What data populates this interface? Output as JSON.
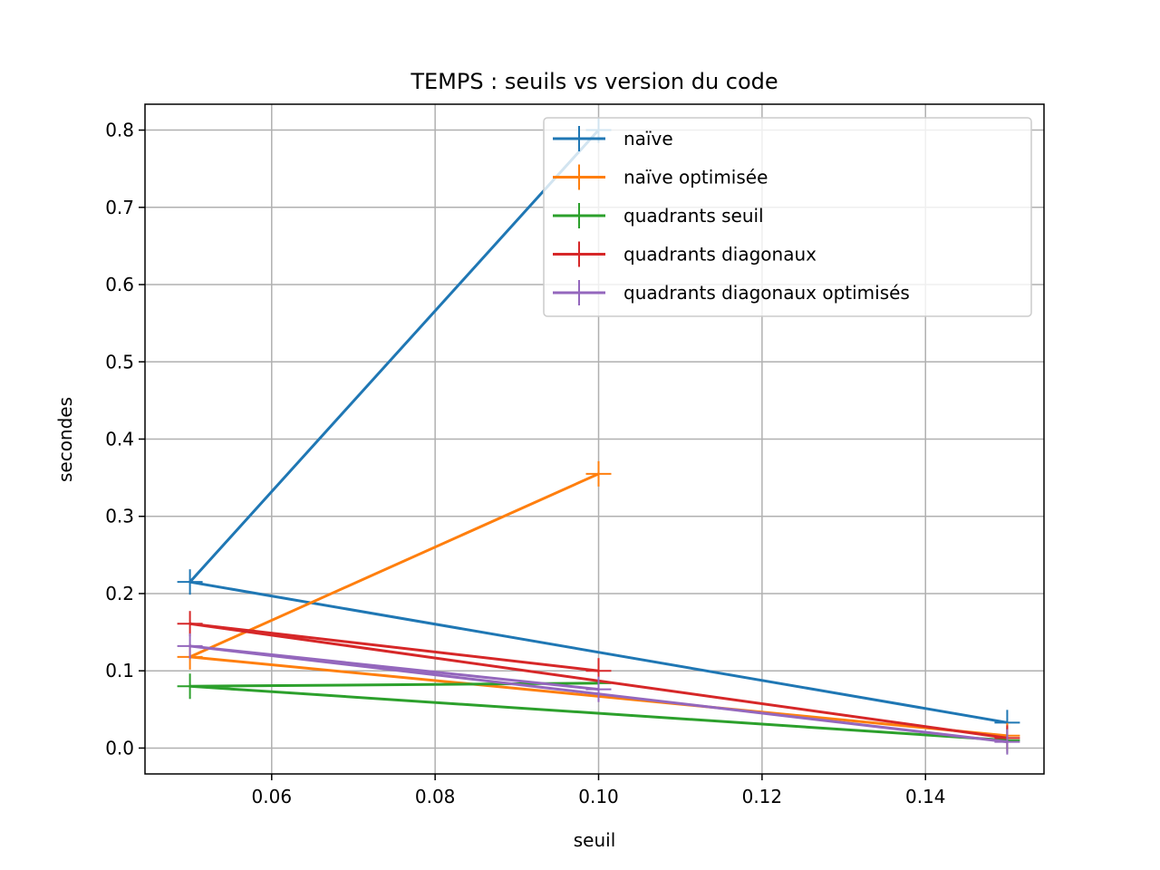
{
  "chart_data": {
    "type": "line",
    "title": "TEMPS : seuils vs version du code",
    "xlabel": "seuil",
    "ylabel": "secondes",
    "xlim": [
      0.0445,
      0.1545
    ],
    "ylim": [
      -0.0335,
      0.8335
    ],
    "xticks": [
      0.06,
      0.08,
      0.1,
      0.12,
      0.14
    ],
    "xtick_labels": [
      "0.06",
      "0.08",
      "0.10",
      "0.12",
      "0.14"
    ],
    "yticks": [
      0.0,
      0.1,
      0.2,
      0.3,
      0.4,
      0.5,
      0.6,
      0.7,
      0.8
    ],
    "ytick_labels": [
      "0.0",
      "0.1",
      "0.2",
      "0.3",
      "0.4",
      "0.5",
      "0.6",
      "0.7",
      "0.8"
    ],
    "grid": true,
    "legend_position": "top-right",
    "marker": "+",
    "series": [
      {
        "name": "naïve",
        "color": "#1f77b4",
        "x": [
          0.1,
          0.05,
          0.15
        ],
        "y": [
          0.8,
          0.215,
          0.033
        ]
      },
      {
        "name": "naïve optimisée",
        "color": "#ff7f0e",
        "x": [
          0.1,
          0.05,
          0.15
        ],
        "y": [
          0.355,
          0.118,
          0.016
        ]
      },
      {
        "name": "quadrants seuil",
        "color": "#2ca02c",
        "x": [
          0.1,
          0.05,
          0.15
        ],
        "y": [
          0.084,
          0.08,
          0.01
        ]
      },
      {
        "name": "quadrants diagonaux",
        "color": "#d62728",
        "x": [
          0.1,
          0.05,
          0.15
        ],
        "y": [
          0.1,
          0.161,
          0.013
        ]
      },
      {
        "name": "quadrants diagonaux optimisés",
        "color": "#9467bd",
        "x": [
          0.1,
          0.05,
          0.15
        ],
        "y": [
          0.076,
          0.132,
          0.008
        ]
      }
    ]
  }
}
